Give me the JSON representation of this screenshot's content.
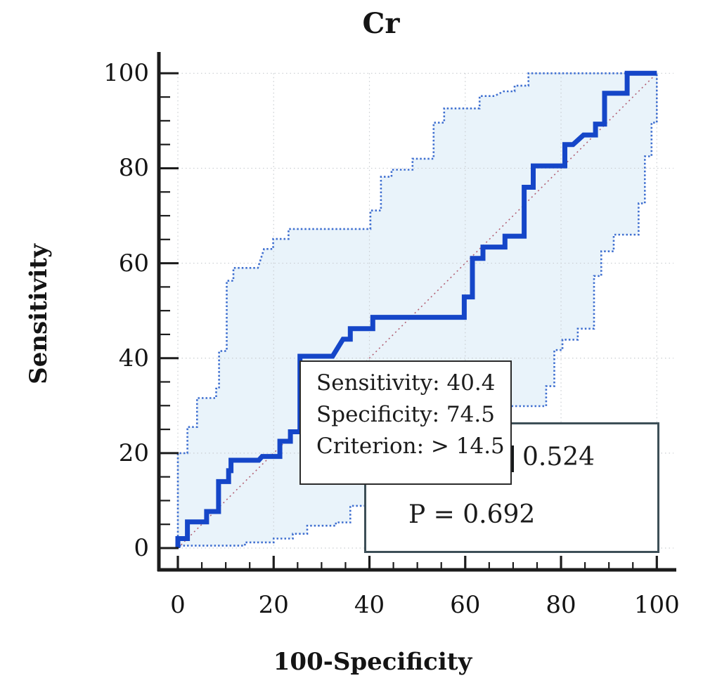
{
  "chart_data": {
    "type": "line",
    "subtype": "roc-curve-with-confidence-band",
    "title": "Cr",
    "xlabel": "100-Specificity",
    "ylabel": "Sensitivity",
    "xlim": [
      0,
      100
    ],
    "ylim": [
      0,
      100
    ],
    "x_ticks": [
      0,
      20,
      40,
      60,
      80,
      100
    ],
    "y_ticks": [
      0,
      20,
      40,
      60,
      80,
      100
    ],
    "minor_tick_step": 5,
    "grid": "dotted gray at major ticks",
    "legend_position": "none",
    "diagonal_reference": {
      "from": [
        0,
        0
      ],
      "to": [
        100,
        100
      ],
      "color": "#b25f72",
      "style": "dotted"
    },
    "colors": {
      "roc_line": "#1546c8",
      "ci_line": "#3f6fd0",
      "ci_band_fill": "#e9f3fa",
      "grid_line": "#c9cdd1",
      "axis_line": "#1c1c1c",
      "box_border": "#3d4f57",
      "tooltip_border": "#2b2b2b"
    },
    "series": [
      {
        "name": "ROC curve",
        "style": "solid",
        "color": "#1546c8",
        "points": [
          [
            0,
            0
          ],
          [
            0,
            2
          ],
          [
            2,
            2
          ],
          [
            2,
            5.5
          ],
          [
            6,
            5.5
          ],
          [
            6,
            7.7
          ],
          [
            8.5,
            7.7
          ],
          [
            8.5,
            14
          ],
          [
            10.6,
            14
          ],
          [
            10.6,
            16.3
          ],
          [
            11.1,
            16.3
          ],
          [
            11.1,
            18.5
          ],
          [
            16.9,
            18.5
          ],
          [
            17.6,
            19.3
          ],
          [
            21.3,
            19.3
          ],
          [
            21.3,
            22.5
          ],
          [
            23.5,
            22.5
          ],
          [
            23.5,
            24.5
          ],
          [
            25.5,
            24.5
          ],
          [
            25.5,
            40.4
          ],
          [
            32.3,
            40.4
          ],
          [
            34.5,
            44
          ],
          [
            36,
            44
          ],
          [
            36,
            46.2
          ],
          [
            40.7,
            46.2
          ],
          [
            40.7,
            48.6
          ],
          [
            59.8,
            48.6
          ],
          [
            59.8,
            52.9
          ],
          [
            61.5,
            52.9
          ],
          [
            61.5,
            61
          ],
          [
            63.7,
            61
          ],
          [
            63.7,
            63.4
          ],
          [
            68.3,
            63.4
          ],
          [
            68.3,
            65.7
          ],
          [
            72.3,
            65.7
          ],
          [
            72.3,
            76
          ],
          [
            74.2,
            76
          ],
          [
            74.2,
            80.5
          ],
          [
            80.8,
            80.5
          ],
          [
            80.8,
            85
          ],
          [
            82.5,
            85
          ],
          [
            84.7,
            87
          ],
          [
            87.2,
            87
          ],
          [
            87.2,
            89.3
          ],
          [
            89.1,
            89.3
          ],
          [
            89.1,
            95.8
          ],
          [
            93.8,
            95.8
          ],
          [
            93.8,
            100
          ],
          [
            100,
            100
          ]
        ]
      },
      {
        "name": "95% CI upper bound",
        "style": "dotted",
        "color": "#3f6fd0",
        "points": [
          [
            0,
            0
          ],
          [
            0,
            20
          ],
          [
            2,
            20
          ],
          [
            2,
            25.5
          ],
          [
            4,
            25.5
          ],
          [
            4,
            31.6
          ],
          [
            8,
            31.6
          ],
          [
            8,
            33.6
          ],
          [
            8.6,
            33.6
          ],
          [
            8.6,
            41.5
          ],
          [
            10.2,
            41.5
          ],
          [
            10.2,
            56.3
          ],
          [
            11.6,
            56.3
          ],
          [
            11.6,
            59
          ],
          [
            16.7,
            59
          ],
          [
            18,
            63
          ],
          [
            19.9,
            63
          ],
          [
            19.9,
            65.1
          ],
          [
            23.1,
            65.1
          ],
          [
            23.1,
            67.2
          ],
          [
            40.2,
            67.2
          ],
          [
            40.2,
            71.1
          ],
          [
            42.4,
            71.1
          ],
          [
            42.4,
            78.2
          ],
          [
            44.6,
            78.2
          ],
          [
            44.6,
            79.7
          ],
          [
            49,
            79.7
          ],
          [
            49,
            82
          ],
          [
            53.4,
            82
          ],
          [
            53.4,
            89.6
          ],
          [
            55.6,
            89.6
          ],
          [
            55.6,
            92.6
          ],
          [
            63,
            92.6
          ],
          [
            63,
            95.2
          ],
          [
            66.1,
            95.2
          ],
          [
            68,
            96.2
          ],
          [
            70.3,
            96.2
          ],
          [
            70.3,
            97.4
          ],
          [
            73.2,
            97.4
          ],
          [
            73.2,
            100
          ],
          [
            100,
            100
          ]
        ]
      },
      {
        "name": "95% CI lower bound",
        "style": "dotted",
        "color": "#3f6fd0",
        "points": [
          [
            0,
            0
          ],
          [
            0,
            0.5
          ],
          [
            14,
            0.5
          ],
          [
            14,
            1.2
          ],
          [
            20,
            1.2
          ],
          [
            20,
            2
          ],
          [
            24,
            2
          ],
          [
            24,
            3
          ],
          [
            27,
            3
          ],
          [
            27,
            4.7
          ],
          [
            33,
            4.7
          ],
          [
            33,
            5.4
          ],
          [
            36,
            5.4
          ],
          [
            36,
            8.9
          ],
          [
            47,
            8.9
          ],
          [
            47,
            13
          ],
          [
            52,
            13
          ],
          [
            52,
            18
          ],
          [
            57,
            18
          ],
          [
            57,
            23
          ],
          [
            62,
            23
          ],
          [
            62,
            27
          ],
          [
            66,
            27
          ],
          [
            66,
            29.9
          ],
          [
            76.9,
            29.9
          ],
          [
            76.9,
            34.1
          ],
          [
            78.6,
            34.1
          ],
          [
            78.6,
            41.7
          ],
          [
            80.3,
            41.7
          ],
          [
            80.3,
            43.9
          ],
          [
            83.5,
            43.9
          ],
          [
            83.5,
            46.2
          ],
          [
            86.9,
            46.2
          ],
          [
            86.9,
            57.3
          ],
          [
            88.4,
            57.3
          ],
          [
            88.4,
            62.5
          ],
          [
            91,
            62.5
          ],
          [
            91,
            66
          ],
          [
            96.2,
            66
          ],
          [
            96.2,
            72.6
          ],
          [
            97.5,
            72.6
          ],
          [
            97.5,
            82.5
          ],
          [
            98.9,
            82.5
          ],
          [
            98.9,
            89.6
          ],
          [
            100,
            89.6
          ],
          [
            100,
            100
          ]
        ]
      }
    ],
    "marked_point": {
      "x": 25.5,
      "y": 40.4,
      "sensitivity": 40.4,
      "specificity": 74.5,
      "criterion": ">14.5"
    },
    "auc": 0.524,
    "p_value": 0.692,
    "annotation_box": {
      "lines": [
        "Sensitivity: 40.4",
        "Specificity: 74.5",
        "Criterion: > 14.5"
      ]
    },
    "result_box": {
      "auc_text": "0.524",
      "p_text": "P = 0.692"
    }
  }
}
